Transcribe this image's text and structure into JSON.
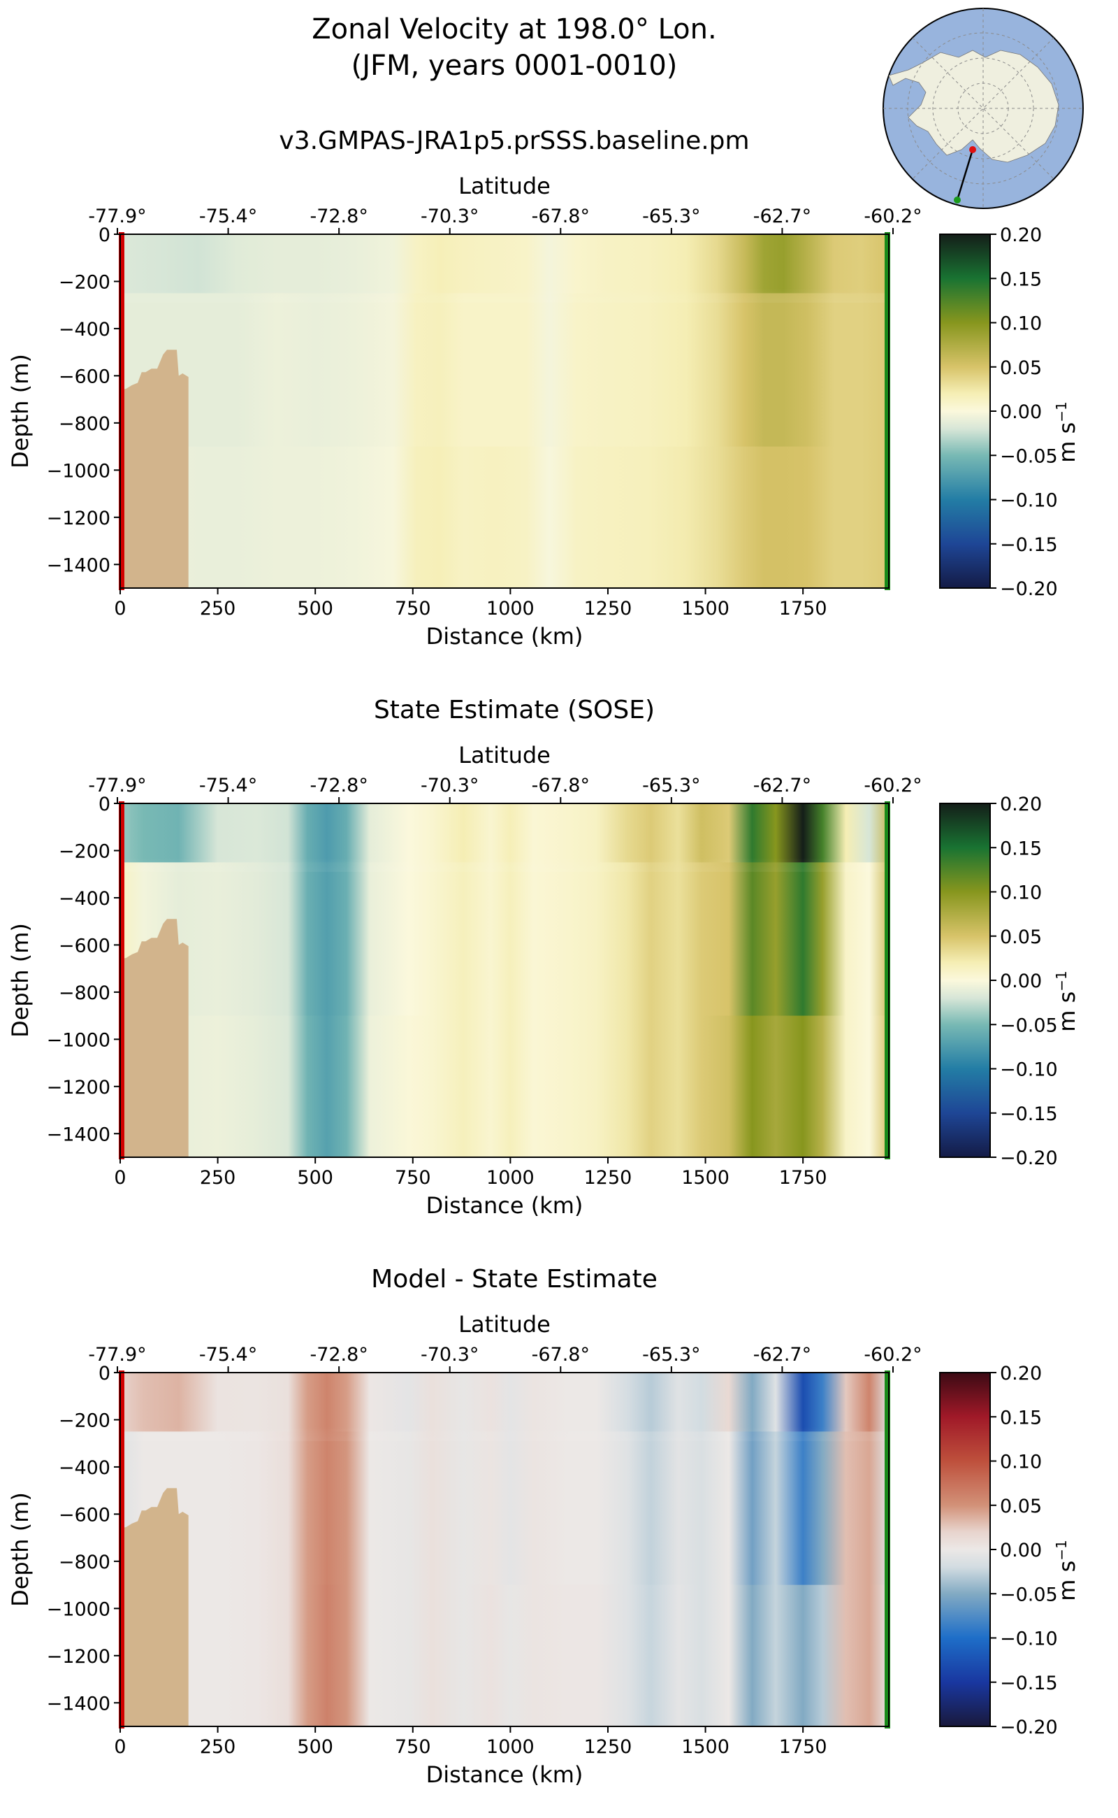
{
  "figure": {
    "title_line1": "Zonal Velocity at 198.0° Lon.",
    "title_line2": "(JFM, years 0001-0010)",
    "colors": {
      "bathymetry": "#d2b48c",
      "section_start": "#d10000",
      "section_end": "#1a8a1a",
      "ocean": "#98b4dd",
      "land": "#efefdf"
    }
  },
  "panels": [
    {
      "title": "v3.GMPAS-JRA1p5.prSSS.baseline.pm",
      "colormap": "velocity"
    },
    {
      "title": "State Estimate (SOSE)",
      "colormap": "velocity"
    },
    {
      "title": "Model - State Estimate",
      "colormap": "difference"
    }
  ],
  "chart_data": {
    "type": "heatmap",
    "xlabel": "Distance (km)",
    "ylabel": "Depth (m)",
    "top_xlabel": "Latitude",
    "xlim": [
      0,
      1970
    ],
    "ylim": [
      -1500,
      0
    ],
    "x_ticks": [
      0,
      250,
      500,
      750,
      1000,
      1250,
      1500,
      1750
    ],
    "y_ticks": [
      0,
      -200,
      -400,
      -600,
      -800,
      -1000,
      -1200,
      -1400
    ],
    "y_tick_labels": [
      "0",
      "−200",
      "−400",
      "−600",
      "−800",
      "−1000",
      "−1200",
      "−1400"
    ],
    "lat_ticks": [
      {
        "km": 0,
        "label": "-77.9°"
      },
      {
        "km": 285,
        "label": "-75.4°"
      },
      {
        "km": 570,
        "label": "-72.8°"
      },
      {
        "km": 855,
        "label": "-70.3°"
      },
      {
        "km": 1140,
        "label": "-67.8°"
      },
      {
        "km": 1425,
        "label": "-65.3°"
      },
      {
        "km": 1710,
        "label": "-62.7°"
      },
      {
        "km": 1995,
        "label": "-60.2°"
      }
    ],
    "colorbar": {
      "label": "m s",
      "label_exponent": "−1",
      "ticks": [
        0.2,
        0.15,
        0.1,
        0.05,
        0.0,
        -0.05,
        -0.1,
        -0.15,
        -0.2
      ],
      "tick_labels": [
        "0.20",
        "0.15",
        "0.10",
        "0.05",
        "0.00",
        "−0.05",
        "−0.10",
        "−0.15",
        "−0.20"
      ],
      "range": [
        -0.2,
        0.2
      ]
    },
    "bathymetry_profile": [
      {
        "km": 0,
        "depth": -660
      },
      {
        "km": 15,
        "depth": -655
      },
      {
        "km": 30,
        "depth": -640
      },
      {
        "km": 45,
        "depth": -630
      },
      {
        "km": 55,
        "depth": -585
      },
      {
        "km": 65,
        "depth": -585
      },
      {
        "km": 80,
        "depth": -570
      },
      {
        "km": 95,
        "depth": -570
      },
      {
        "km": 110,
        "depth": -510
      },
      {
        "km": 120,
        "depth": -490
      },
      {
        "km": 145,
        "depth": -490
      },
      {
        "km": 150,
        "depth": -600
      },
      {
        "km": 160,
        "depth": -590
      },
      {
        "km": 175,
        "depth": -605
      },
      {
        "km": 175,
        "depth": -1500
      }
    ],
    "series": [
      {
        "name": "v3.GMPAS-JRA1p5.prSSS.baseline.pm",
        "column_profiles": [
          {
            "km": 0,
            "values": [
              -0.018,
              -0.012,
              -0.01
            ]
          },
          {
            "km": 100,
            "values": [
              -0.02,
              -0.012,
              -0.008
            ]
          },
          {
            "km": 200,
            "values": [
              -0.022,
              -0.012,
              -0.01
            ]
          },
          {
            "km": 300,
            "values": [
              -0.015,
              -0.012,
              -0.01
            ]
          },
          {
            "km": 400,
            "values": [
              -0.012,
              -0.008,
              -0.008
            ]
          },
          {
            "km": 500,
            "values": [
              -0.012,
              -0.01,
              -0.008
            ]
          },
          {
            "km": 600,
            "values": [
              -0.01,
              -0.008,
              -0.006
            ]
          },
          {
            "km": 700,
            "values": [
              -0.006,
              -0.004,
              -0.002
            ]
          },
          {
            "km": 760,
            "values": [
              0.012,
              0.014,
              0.016
            ]
          },
          {
            "km": 820,
            "values": [
              0.018,
              0.016,
              0.018
            ]
          },
          {
            "km": 880,
            "values": [
              0.014,
              0.01,
              0.012
            ]
          },
          {
            "km": 960,
            "values": [
              0.012,
              0.01,
              0.014
            ]
          },
          {
            "km": 1040,
            "values": [
              0.01,
              0.01,
              0.012
            ]
          },
          {
            "km": 1100,
            "values": [
              -0.004,
              -0.004,
              -0.002
            ]
          },
          {
            "km": 1170,
            "values": [
              0.008,
              0.01,
              0.012
            ]
          },
          {
            "km": 1250,
            "values": [
              0.012,
              0.012,
              0.014
            ]
          },
          {
            "km": 1350,
            "values": [
              0.014,
              0.014,
              0.016
            ]
          },
          {
            "km": 1450,
            "values": [
              0.02,
              0.02,
              0.022
            ]
          },
          {
            "km": 1530,
            "values": [
              0.035,
              0.032,
              0.032
            ]
          },
          {
            "km": 1600,
            "values": [
              0.06,
              0.05,
              0.045
            ]
          },
          {
            "km": 1650,
            "values": [
              0.085,
              0.062,
              0.052
            ]
          },
          {
            "km": 1700,
            "values": [
              0.09,
              0.062,
              0.052
            ]
          },
          {
            "km": 1760,
            "values": [
              0.07,
              0.055,
              0.05
            ]
          },
          {
            "km": 1830,
            "values": [
              0.045,
              0.04,
              0.04
            ]
          },
          {
            "km": 1900,
            "values": [
              0.042,
              0.04,
              0.04
            ]
          },
          {
            "km": 1970,
            "values": [
              0.05,
              0.045,
              0.045
            ]
          }
        ]
      },
      {
        "name": "State Estimate (SOSE)",
        "column_profiles": [
          {
            "km": 0,
            "values": [
              -0.04,
              0.012,
              0.005
            ]
          },
          {
            "km": 60,
            "values": [
              -0.05,
              -0.005,
              -0.005
            ]
          },
          {
            "km": 150,
            "values": [
              -0.055,
              -0.012,
              -0.01
            ]
          },
          {
            "km": 250,
            "values": [
              -0.02,
              -0.01,
              -0.008
            ]
          },
          {
            "km": 350,
            "values": [
              -0.018,
              -0.014,
              -0.012
            ]
          },
          {
            "km": 430,
            "values": [
              -0.022,
              -0.02,
              -0.018
            ]
          },
          {
            "km": 480,
            "values": [
              -0.06,
              -0.058,
              -0.055
            ]
          },
          {
            "km": 530,
            "values": [
              -0.075,
              -0.072,
              -0.07
            ]
          },
          {
            "km": 580,
            "values": [
              -0.06,
              -0.058,
              -0.055
            ]
          },
          {
            "km": 640,
            "values": [
              -0.012,
              -0.01,
              -0.008
            ]
          },
          {
            "km": 740,
            "values": [
              0.0,
              0.0,
              0.002
            ]
          },
          {
            "km": 800,
            "values": [
              0.006,
              0.006,
              0.006
            ]
          },
          {
            "km": 880,
            "values": [
              0.02,
              0.016,
              0.016
            ]
          },
          {
            "km": 950,
            "values": [
              0.006,
              0.006,
              0.006
            ]
          },
          {
            "km": 1000,
            "values": [
              0.018,
              0.016,
              0.016
            ]
          },
          {
            "km": 1060,
            "values": [
              0.004,
              0.004,
              0.004
            ]
          },
          {
            "km": 1150,
            "values": [
              0.008,
              0.008,
              0.008
            ]
          },
          {
            "km": 1220,
            "values": [
              0.012,
              0.012,
              0.012
            ]
          },
          {
            "km": 1300,
            "values": [
              0.035,
              0.025,
              0.025
            ]
          },
          {
            "km": 1360,
            "values": [
              0.045,
              0.04,
              0.04
            ]
          },
          {
            "km": 1430,
            "values": [
              0.03,
              0.03,
              0.03
            ]
          },
          {
            "km": 1490,
            "values": [
              0.055,
              0.045,
              0.045
            ]
          },
          {
            "km": 1560,
            "values": [
              0.045,
              0.05,
              0.055
            ]
          },
          {
            "km": 1620,
            "values": [
              0.14,
              0.12,
              0.1
            ]
          },
          {
            "km": 1680,
            "values": [
              0.1,
              0.09,
              0.08
            ]
          },
          {
            "km": 1750,
            "values": [
              0.2,
              0.14,
              0.1
            ]
          },
          {
            "km": 1800,
            "values": [
              0.13,
              0.09,
              0.07
            ]
          },
          {
            "km": 1860,
            "values": [
              0.02,
              0.01,
              0.01
            ]
          },
          {
            "km": 1920,
            "values": [
              -0.02,
              0.0,
              0.0
            ]
          },
          {
            "km": 1970,
            "values": [
              0.06,
              0.055,
              0.05
            ]
          }
        ]
      },
      {
        "name": "Model - State Estimate",
        "column_profiles": [
          {
            "km": 0,
            "values": [
              0.02,
              -0.01,
              -0.008
            ]
          },
          {
            "km": 60,
            "values": [
              0.03,
              0.0,
              0.0
            ]
          },
          {
            "km": 150,
            "values": [
              0.035,
              0.0,
              0.0
            ]
          },
          {
            "km": 250,
            "values": [
              0.005,
              0.0,
              0.0
            ]
          },
          {
            "km": 350,
            "values": [
              0.004,
              0.002,
              0.002
            ]
          },
          {
            "km": 430,
            "values": [
              0.008,
              0.01,
              0.01
            ]
          },
          {
            "km": 480,
            "values": [
              0.045,
              0.045,
              0.045
            ]
          },
          {
            "km": 530,
            "values": [
              0.06,
              0.06,
              0.062
            ]
          },
          {
            "km": 580,
            "values": [
              0.045,
              0.048,
              0.048
            ]
          },
          {
            "km": 640,
            "values": [
              0.002,
              0.0,
              0.0
            ]
          },
          {
            "km": 740,
            "values": [
              -0.006,
              -0.004,
              -0.004
            ]
          },
          {
            "km": 800,
            "values": [
              0.008,
              0.008,
              0.008
            ]
          },
          {
            "km": 880,
            "values": [
              -0.004,
              -0.004,
              -0.004
            ]
          },
          {
            "km": 950,
            "values": [
              0.006,
              0.004,
              0.006
            ]
          },
          {
            "km": 1000,
            "values": [
              -0.006,
              -0.006,
              -0.004
            ]
          },
          {
            "km": 1060,
            "values": [
              0.004,
              0.004,
              0.004
            ]
          },
          {
            "km": 1150,
            "values": [
              0.0,
              0.0,
              0.002
            ]
          },
          {
            "km": 1220,
            "values": [
              0.0,
              0.0,
              0.002
            ]
          },
          {
            "km": 1300,
            "values": [
              -0.018,
              -0.01,
              -0.01
            ]
          },
          {
            "km": 1360,
            "values": [
              -0.03,
              -0.026,
              -0.024
            ]
          },
          {
            "km": 1430,
            "values": [
              -0.01,
              -0.008,
              -0.006
            ]
          },
          {
            "km": 1490,
            "values": [
              -0.02,
              -0.015,
              -0.015
            ]
          },
          {
            "km": 1560,
            "values": [
              0.015,
              0.0,
              0.0
            ]
          },
          {
            "km": 1620,
            "values": [
              -0.05,
              -0.058,
              -0.05
            ]
          },
          {
            "km": 1680,
            "values": [
              -0.01,
              -0.025,
              -0.025
            ]
          },
          {
            "km": 1750,
            "values": [
              -0.13,
              -0.085,
              -0.05
            ]
          },
          {
            "km": 1800,
            "values": [
              -0.085,
              -0.05,
              -0.03
            ]
          },
          {
            "km": 1860,
            "values": [
              0.025,
              0.03,
              0.03
            ]
          },
          {
            "km": 1920,
            "values": [
              0.06,
              0.04,
              0.04
            ]
          },
          {
            "km": 1970,
            "values": [
              -0.01,
              -0.01,
              -0.005
            ]
          }
        ]
      }
    ]
  }
}
